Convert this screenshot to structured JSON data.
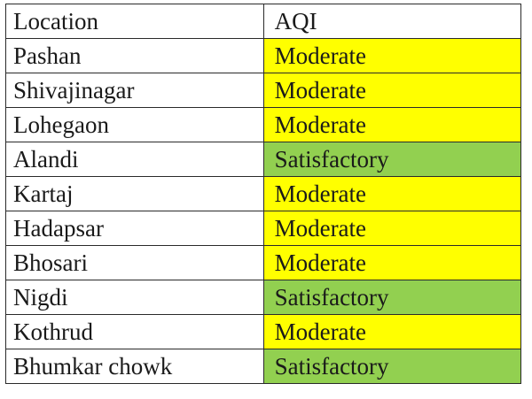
{
  "table": {
    "headers": {
      "location": "Location",
      "aqi": "AQI"
    },
    "rows": [
      {
        "location": "Pashan",
        "aqi": "Moderate"
      },
      {
        "location": "Shivajinagar",
        "aqi": "Moderate"
      },
      {
        "location": "Lohegaon",
        "aqi": "Moderate"
      },
      {
        "location": "Alandi",
        "aqi": "Satisfactory"
      },
      {
        "location": "Kartaj",
        "aqi": "Moderate"
      },
      {
        "location": "Hadapsar",
        "aqi": "Moderate"
      },
      {
        "location": "Bhosari",
        "aqi": "Moderate"
      },
      {
        "location": "Nigdi",
        "aqi": "Satisfactory"
      },
      {
        "location": "Kothrud",
        "aqi": "Moderate"
      },
      {
        "location": "Bhumkar chowk",
        "aqi": "Satisfactory"
      }
    ]
  },
  "colors": {
    "Moderate": "#ffff00",
    "Satisfactory": "#92d050"
  }
}
